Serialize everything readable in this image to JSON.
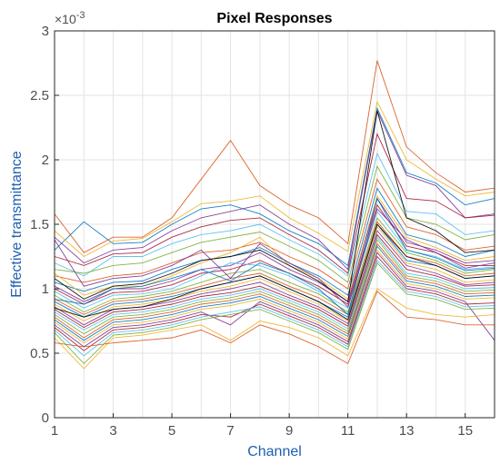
{
  "chart_data": {
    "type": "line",
    "title": "Pixel Responses",
    "xlabel": "Channel",
    "ylabel": "Effective transmittance",
    "y_exponent_label": "×10",
    "y_exponent_value": "-3",
    "xlim": [
      1,
      16
    ],
    "ylim": [
      0,
      3
    ],
    "x_ticks": [
      1,
      3,
      5,
      7,
      9,
      11,
      13,
      15
    ],
    "y_ticks": [
      0,
      0.5,
      1,
      1.5,
      2,
      2.5,
      3
    ],
    "x_tick_labels": [
      "1",
      "3",
      "5",
      "7",
      "9",
      "11",
      "13",
      "15"
    ],
    "y_tick_labels": [
      "0",
      "0.5",
      "1",
      "1.5",
      "2",
      "2.5",
      "3"
    ],
    "grid": true,
    "x": [
      1,
      2,
      3,
      4,
      5,
      6,
      7,
      8,
      9,
      10,
      11,
      12,
      13,
      14,
      15,
      16
    ],
    "series": [
      {
        "color": "#d95319",
        "values": [
          1.58,
          1.28,
          1.4,
          1.4,
          1.55,
          1.85,
          2.15,
          1.8,
          1.65,
          1.55,
          1.35,
          2.77,
          2.1,
          1.9,
          1.75,
          1.78
        ]
      },
      {
        "color": "#0072bd",
        "values": [
          1.3,
          1.52,
          1.35,
          1.36,
          1.5,
          1.62,
          1.65,
          1.58,
          1.45,
          1.35,
          1.18,
          2.4,
          1.9,
          1.82,
          1.65,
          1.7
        ]
      },
      {
        "color": "#edb120",
        "values": [
          1.45,
          1.25,
          1.37,
          1.39,
          1.52,
          1.66,
          1.68,
          1.72,
          1.55,
          1.43,
          1.29,
          2.45,
          2.0,
          1.85,
          1.72,
          1.75
        ]
      },
      {
        "color": "#7e2f8e",
        "values": [
          1.4,
          1.2,
          1.3,
          1.32,
          1.45,
          1.55,
          1.6,
          1.65,
          1.5,
          1.38,
          1.15,
          2.38,
          1.88,
          1.8,
          1.55,
          1.58
        ]
      },
      {
        "color": "#a2142f",
        "values": [
          1.25,
          1.18,
          1.27,
          1.28,
          1.4,
          1.48,
          1.53,
          1.55,
          1.42,
          1.3,
          1.12,
          2.2,
          1.7,
          1.68,
          1.55,
          1.57
        ]
      },
      {
        "color": "#4dbeee",
        "values": [
          1.2,
          1.1,
          1.25,
          1.25,
          1.35,
          1.42,
          1.45,
          1.5,
          1.38,
          1.27,
          1.1,
          2.05,
          1.6,
          1.58,
          1.42,
          1.45
        ]
      },
      {
        "color": "#77ac30",
        "values": [
          1.15,
          1.12,
          1.18,
          1.2,
          1.28,
          1.36,
          1.4,
          1.44,
          1.33,
          1.22,
          1.05,
          1.95,
          1.55,
          1.5,
          1.38,
          1.42
        ]
      },
      {
        "color": "#d95319",
        "values": [
          1.1,
          1.05,
          1.1,
          1.12,
          1.2,
          1.28,
          1.3,
          1.36,
          1.25,
          1.15,
          1.0,
          1.85,
          1.48,
          1.42,
          1.3,
          1.33
        ]
      },
      {
        "color": "#0072bd",
        "values": [
          1.05,
          0.98,
          1.05,
          1.06,
          1.15,
          1.22,
          1.25,
          1.32,
          1.2,
          1.1,
          0.95,
          1.78,
          1.42,
          1.36,
          1.25,
          1.3
        ]
      },
      {
        "color": "#edb120",
        "values": [
          1.12,
          0.95,
          1.02,
          1.02,
          1.1,
          1.2,
          1.28,
          1.4,
          1.18,
          1.08,
          0.92,
          1.72,
          1.4,
          1.32,
          1.22,
          1.25
        ]
      },
      {
        "color": "#7e2f8e",
        "values": [
          1.02,
          0.9,
          1.0,
          1.0,
          1.06,
          1.15,
          1.18,
          1.28,
          1.15,
          1.05,
          0.9,
          1.7,
          1.36,
          1.3,
          1.2,
          1.22
        ]
      },
      {
        "color": "#a2142f",
        "values": [
          1.0,
          0.88,
          0.97,
          0.98,
          1.03,
          1.12,
          1.15,
          1.22,
          1.12,
          1.02,
          0.88,
          1.65,
          1.33,
          1.28,
          1.18,
          1.18
        ]
      },
      {
        "color": "#4dbeee",
        "values": [
          0.98,
          0.85,
          0.95,
          0.96,
          1.0,
          1.1,
          1.2,
          1.18,
          1.1,
          0.98,
          0.85,
          1.6,
          1.3,
          1.25,
          1.15,
          1.17
        ]
      },
      {
        "color": "#77ac30",
        "values": [
          0.95,
          0.82,
          0.92,
          0.94,
          0.98,
          1.05,
          1.12,
          1.15,
          1.05,
          0.96,
          0.82,
          1.55,
          1.28,
          1.22,
          1.12,
          1.15
        ]
      },
      {
        "color": "#d95319",
        "values": [
          0.92,
          0.8,
          0.9,
          0.92,
          0.96,
          1.02,
          1.08,
          1.12,
          1.02,
          0.93,
          0.8,
          1.52,
          1.25,
          1.2,
          1.1,
          1.12
        ]
      },
      {
        "color": "#0072bd",
        "values": [
          0.9,
          0.78,
          0.88,
          0.9,
          0.94,
          1.0,
          1.05,
          1.1,
          1.0,
          0.9,
          0.78,
          1.5,
          1.22,
          1.18,
          1.08,
          1.1
        ]
      },
      {
        "color": "#edb120",
        "values": [
          0.88,
          0.75,
          0.86,
          0.88,
          0.92,
          0.98,
          1.02,
          1.08,
          0.98,
          0.88,
          0.75,
          1.48,
          1.2,
          1.15,
          1.05,
          1.07
        ]
      },
      {
        "color": "#7e2f8e",
        "values": [
          0.86,
          0.72,
          0.84,
          0.86,
          0.9,
          0.96,
          1.0,
          1.05,
          0.95,
          0.86,
          0.73,
          1.45,
          1.18,
          1.12,
          1.03,
          1.05
        ]
      },
      {
        "color": "#a2142f",
        "values": [
          0.84,
          0.7,
          0.82,
          0.84,
          0.88,
          0.94,
          0.97,
          1.02,
          0.93,
          0.84,
          0.71,
          1.42,
          1.15,
          1.1,
          1.02,
          1.03
        ]
      },
      {
        "color": "#4dbeee",
        "values": [
          0.82,
          0.68,
          0.8,
          0.82,
          0.86,
          0.92,
          0.95,
          1.0,
          0.91,
          0.82,
          0.69,
          1.4,
          1.12,
          1.08,
          1.0,
          1.01
        ]
      },
      {
        "color": "#77ac30",
        "values": [
          0.8,
          0.65,
          0.78,
          0.8,
          0.84,
          0.9,
          0.93,
          0.98,
          0.89,
          0.8,
          0.67,
          1.38,
          1.1,
          1.06,
          0.98,
          0.99
        ]
      },
      {
        "color": "#d95319",
        "values": [
          0.78,
          0.62,
          0.76,
          0.78,
          0.82,
          0.88,
          0.91,
          0.96,
          0.87,
          0.78,
          0.65,
          1.35,
          1.08,
          1.04,
          0.96,
          0.97
        ]
      },
      {
        "color": "#0072bd",
        "values": [
          0.76,
          0.6,
          0.74,
          0.76,
          0.8,
          0.86,
          0.89,
          0.94,
          0.85,
          0.76,
          0.63,
          1.33,
          1.06,
          1.02,
          0.94,
          0.95
        ]
      },
      {
        "color": "#edb120",
        "values": [
          0.74,
          0.58,
          0.72,
          0.74,
          0.78,
          0.84,
          0.87,
          0.92,
          0.83,
          0.74,
          0.61,
          1.3,
          1.04,
          1.0,
          0.92,
          0.93
        ]
      },
      {
        "color": "#7e2f8e",
        "values": [
          0.72,
          0.55,
          0.7,
          0.72,
          0.76,
          0.82,
          0.72,
          0.9,
          0.81,
          0.72,
          0.59,
          1.28,
          1.02,
          0.98,
          0.9,
          0.6
        ]
      },
      {
        "color": "#a2142f",
        "values": [
          0.7,
          0.52,
          0.68,
          0.7,
          0.74,
          0.8,
          0.78,
          0.88,
          0.79,
          0.7,
          0.57,
          1.25,
          1.0,
          0.96,
          0.88,
          0.89
        ]
      },
      {
        "color": "#4dbeee",
        "values": [
          0.68,
          0.48,
          0.66,
          0.68,
          0.72,
          0.78,
          0.82,
          0.86,
          0.77,
          0.68,
          0.55,
          1.22,
          0.98,
          0.94,
          0.86,
          0.87
        ]
      },
      {
        "color": "#77ac30",
        "values": [
          0.66,
          0.42,
          0.64,
          0.66,
          0.7,
          0.76,
          0.8,
          0.84,
          0.75,
          0.66,
          0.53,
          1.2,
          0.96,
          0.92,
          0.84,
          0.85
        ]
      },
      {
        "color": "#edb120",
        "values": [
          0.62,
          0.38,
          0.62,
          0.64,
          0.68,
          0.72,
          0.6,
          0.75,
          0.7,
          0.62,
          0.48,
          1.0,
          0.85,
          0.8,
          0.78,
          0.8
        ]
      },
      {
        "color": "#d95319",
        "values": [
          0.58,
          0.55,
          0.58,
          0.6,
          0.62,
          0.68,
          0.58,
          0.72,
          0.65,
          0.55,
          0.42,
          0.98,
          0.78,
          0.76,
          0.72,
          0.72
        ]
      },
      {
        "color": "#0072bd",
        "values": [
          0.92,
          0.88,
          1.0,
          1.02,
          1.08,
          1.15,
          1.06,
          1.2,
          1.12,
          1.0,
          0.8,
          1.7,
          1.3,
          1.24,
          1.14,
          1.16
        ]
      },
      {
        "color": "#7e2f8e",
        "values": [
          1.38,
          1.02,
          1.08,
          1.1,
          1.18,
          1.3,
          1.08,
          1.35,
          1.2,
          1.08,
          0.86,
          1.62,
          1.38,
          1.28,
          1.16,
          1.2
        ]
      },
      {
        "color": "#000000",
        "values": [
          1.08,
          0.92,
          1.02,
          1.04,
          1.12,
          1.22,
          1.25,
          1.3,
          1.18,
          1.06,
          0.9,
          2.38,
          1.55,
          1.45,
          1.28,
          1.3
        ]
      },
      {
        "color": "#000000",
        "values": [
          0.85,
          0.78,
          0.84,
          0.86,
          0.92,
          1.0,
          1.05,
          1.1,
          1.0,
          0.9,
          0.76,
          1.5,
          1.25,
          1.18,
          1.08,
          1.1
        ]
      }
    ]
  }
}
